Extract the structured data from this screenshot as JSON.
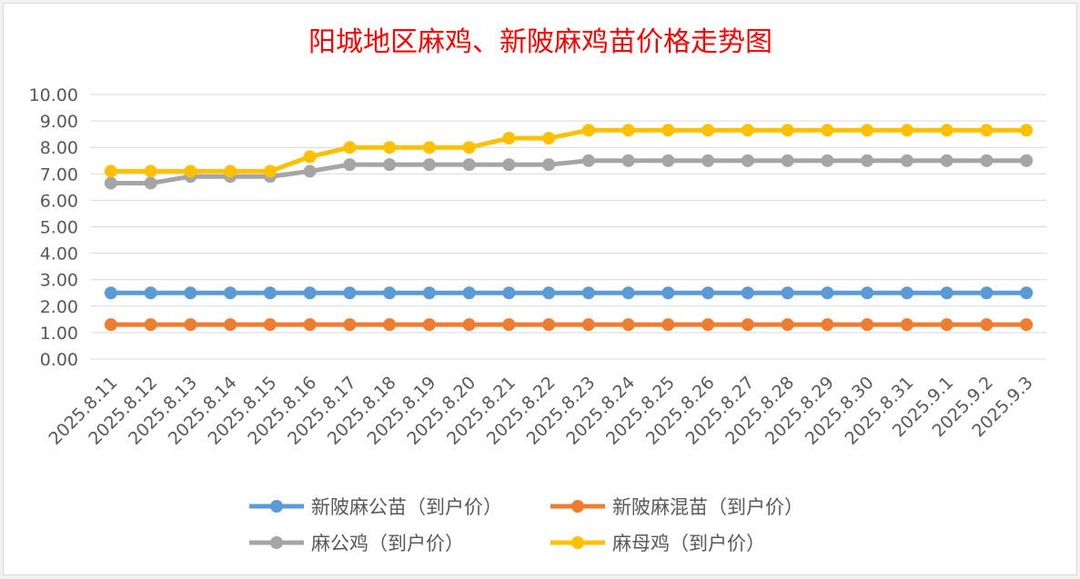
{
  "chart_data": {
    "type": "line",
    "title": "阳城地区麻鸡、新陂麻鸡苗价格走势图",
    "title_color": "#ff0000",
    "xlabel": "",
    "ylabel": "",
    "ylim": [
      0,
      10
    ],
    "y_tick_labels": [
      "0.00",
      "1.00",
      "2.00",
      "3.00",
      "4.00",
      "5.00",
      "6.00",
      "7.00",
      "8.00",
      "9.00",
      "10.00"
    ],
    "grid": true,
    "legend_position": "bottom",
    "categories": [
      "2025.8.11",
      "2025.8.12",
      "2025.8.13",
      "2025.8.14",
      "2025.8.15",
      "2025.8.16",
      "2025.8.17",
      "2025.8.18",
      "2025.8.19",
      "2025.8.20",
      "2025.8.21",
      "2025.8.22",
      "2025.8.23",
      "2025.8.24",
      "2025.8.25",
      "2025.8.26",
      "2025.8.27",
      "2025.8.28",
      "2025.8.29",
      "2025.8.30",
      "2025.8.31",
      "2025.9.1",
      "2025.9.2",
      "2025.9.3"
    ],
    "series": [
      {
        "name": "新陂麻公苗（到户价）",
        "color": "#5b9bd5",
        "values": [
          2.5,
          2.5,
          2.5,
          2.5,
          2.5,
          2.5,
          2.5,
          2.5,
          2.5,
          2.5,
          2.5,
          2.5,
          2.5,
          2.5,
          2.5,
          2.5,
          2.5,
          2.5,
          2.5,
          2.5,
          2.5,
          2.5,
          2.5,
          2.5
        ]
      },
      {
        "name": "新陂麻混苗（到户价）",
        "color": "#ed7d31",
        "values": [
          1.3,
          1.3,
          1.3,
          1.3,
          1.3,
          1.3,
          1.3,
          1.3,
          1.3,
          1.3,
          1.3,
          1.3,
          1.3,
          1.3,
          1.3,
          1.3,
          1.3,
          1.3,
          1.3,
          1.3,
          1.3,
          1.3,
          1.3,
          1.3
        ]
      },
      {
        "name": "麻公鸡（到户价）",
        "color": "#a5a5a5",
        "values": [
          6.65,
          6.65,
          6.9,
          6.9,
          6.9,
          7.1,
          7.35,
          7.35,
          7.35,
          7.35,
          7.35,
          7.35,
          7.5,
          7.5,
          7.5,
          7.5,
          7.5,
          7.5,
          7.5,
          7.5,
          7.5,
          7.5,
          7.5,
          7.5
        ]
      },
      {
        "name": "麻母鸡（到户价）",
        "color": "#ffc000",
        "values": [
          7.1,
          7.1,
          7.1,
          7.1,
          7.1,
          7.65,
          8.0,
          8.0,
          8.0,
          8.0,
          8.35,
          8.35,
          8.65,
          8.65,
          8.65,
          8.65,
          8.65,
          8.65,
          8.65,
          8.65,
          8.65,
          8.65,
          8.65,
          8.65
        ]
      }
    ]
  }
}
